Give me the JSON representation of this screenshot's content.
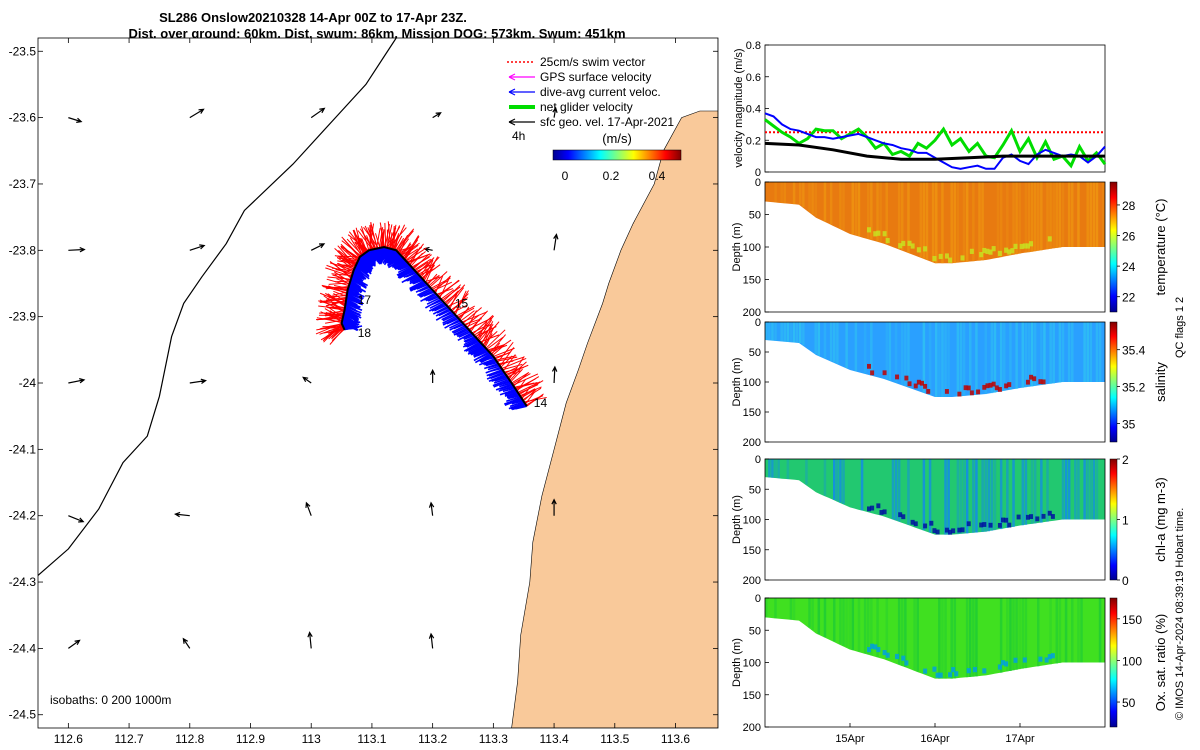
{
  "header": {
    "title_line1": "SL286 Onslow20210328 14-Apr 00Z to 17-Apr 23Z.",
    "title_line2": "Dist. over ground: 60km. Dist. swum: 86km. Mission DOG: 573km. Swum: 451km"
  },
  "colors": {
    "swim_vector": "#ff0000",
    "gps_velocity": "#ff00ff",
    "dive_current": "#0000ff",
    "net_glider": "#00dd00",
    "sfc_geo": "#000000",
    "land": "#f9c99a",
    "track": "#000000"
  },
  "map": {
    "lon_ticks": [
      "112.6",
      "112.7",
      "112.8",
      "112.9",
      "113",
      "113.1",
      "113.2",
      "113.3",
      "113.4",
      "113.5",
      "113.6"
    ],
    "lat_ticks": [
      "-23.5",
      "-23.6",
      "-23.7",
      "-23.8",
      "-23.9",
      "-24",
      "-24.1",
      "-24.2",
      "-24.3",
      "-24.4",
      "-24.5"
    ],
    "lon_range": [
      112.55,
      113.67
    ],
    "lat_range": [
      -24.52,
      -23.48
    ],
    "legend": [
      {
        "label": "25cm/s swim vector",
        "color": "#ff0000",
        "style": "dotted"
      },
      {
        "label": "GPS surface velocity",
        "color": "#ff00ff",
        "style": "arrow"
      },
      {
        "label": "dive-avg current veloc.",
        "color": "#0000ff",
        "style": "arrow"
      },
      {
        "label": "net glider velocity",
        "color": "#00dd00",
        "style": "thick"
      },
      {
        "label": "sfc geo. vel. 17-Apr-2021",
        "color": "#000000",
        "style": "arrow"
      }
    ],
    "legend_extra": "4h",
    "colorbar_title": "(m/s)",
    "colorbar_ticks": [
      "0",
      "0.2",
      "0.4"
    ],
    "day_labels": [
      {
        "text": "14",
        "lon": 113.36,
        "lat": -24.03
      },
      {
        "text": "15",
        "lon": 113.23,
        "lat": -23.88
      },
      {
        "text": "17",
        "lon": 113.07,
        "lat": -23.875
      },
      {
        "text": "18",
        "lon": 113.07,
        "lat": -23.925
      }
    ],
    "isobaths": "isobaths: 0   200  1000m",
    "geo_vectors": [
      {
        "lon": 112.6,
        "lat": -23.6,
        "u": 0.8,
        "v": -0.25
      },
      {
        "lon": 112.8,
        "lat": -23.6,
        "u": 1.0,
        "v": 0.6
      },
      {
        "lon": 113.0,
        "lat": -23.6,
        "u": 1.0,
        "v": 0.7
      },
      {
        "lon": 113.2,
        "lat": -23.6,
        "u": 0.5,
        "v": 0.3
      },
      {
        "lon": 113.4,
        "lat": -23.6,
        "u": 0.1,
        "v": 0.6
      },
      {
        "lon": 112.6,
        "lat": -23.8,
        "u": 1.0,
        "v": 0.05
      },
      {
        "lon": 112.8,
        "lat": -23.8,
        "u": 0.9,
        "v": 0.3
      },
      {
        "lon": 113.0,
        "lat": -23.8,
        "u": 0.8,
        "v": 0.4
      },
      {
        "lon": 113.2,
        "lat": -23.8,
        "u": -0.5,
        "v": 0.1
      },
      {
        "lon": 113.4,
        "lat": -23.8,
        "u": 0.15,
        "v": 1.0
      },
      {
        "lon": 112.6,
        "lat": -24.0,
        "u": 1.0,
        "v": 0.2
      },
      {
        "lon": 112.8,
        "lat": -24.0,
        "u": 1.0,
        "v": 0.15
      },
      {
        "lon": 113.0,
        "lat": -24.0,
        "u": -0.5,
        "v": 0.35
      },
      {
        "lon": 113.2,
        "lat": -24.0,
        "u": 0.0,
        "v": 0.8
      },
      {
        "lon": 113.4,
        "lat": -24.0,
        "u": 0.05,
        "v": 1.0
      },
      {
        "lon": 112.6,
        "lat": -24.2,
        "u": 1.0,
        "v": -0.4
      },
      {
        "lon": 112.8,
        "lat": -24.2,
        "u": -0.9,
        "v": 0.1
      },
      {
        "lon": 113.0,
        "lat": -24.2,
        "u": -0.3,
        "v": 0.8
      },
      {
        "lon": 113.2,
        "lat": -24.2,
        "u": -0.1,
        "v": 0.8
      },
      {
        "lon": 113.4,
        "lat": -24.2,
        "u": 0.0,
        "v": 1.1
      },
      {
        "lon": 112.6,
        "lat": -24.4,
        "u": 0.7,
        "v": 0.5
      },
      {
        "lon": 112.8,
        "lat": -24.4,
        "u": -0.4,
        "v": 0.6
      },
      {
        "lon": 113.0,
        "lat": -24.4,
        "u": -0.1,
        "v": 1.0
      },
      {
        "lon": 113.2,
        "lat": -24.4,
        "u": -0.1,
        "v": 0.9
      }
    ],
    "track": [
      [
        113.355,
        -24.035
      ],
      [
        113.33,
        -24.0
      ],
      [
        113.3,
        -23.96
      ],
      [
        113.27,
        -23.93
      ],
      [
        113.23,
        -23.89
      ],
      [
        113.19,
        -23.85
      ],
      [
        113.16,
        -23.82
      ],
      [
        113.14,
        -23.8
      ],
      [
        113.12,
        -23.795
      ],
      [
        113.095,
        -23.8
      ],
      [
        113.08,
        -23.81
      ],
      [
        113.07,
        -23.83
      ],
      [
        113.06,
        -23.86
      ],
      [
        113.055,
        -23.89
      ],
      [
        113.05,
        -23.91
      ],
      [
        113.055,
        -23.92
      ]
    ],
    "coast": [
      [
        113.67,
        -23.48
      ],
      [
        113.67,
        -23.59
      ],
      [
        113.64,
        -23.59
      ],
      [
        113.61,
        -23.6
      ],
      [
        113.58,
        -23.65
      ],
      [
        113.565,
        -23.7
      ],
      [
        113.53,
        -23.76
      ],
      [
        113.51,
        -23.8
      ],
      [
        113.49,
        -23.85
      ],
      [
        113.48,
        -23.88
      ],
      [
        113.455,
        -23.94
      ],
      [
        113.44,
        -23.98
      ],
      [
        113.42,
        -24.03
      ],
      [
        113.4,
        -24.1
      ],
      [
        113.38,
        -24.17
      ],
      [
        113.365,
        -24.24
      ],
      [
        113.36,
        -24.3
      ],
      [
        113.345,
        -24.38
      ],
      [
        113.34,
        -24.45
      ],
      [
        113.33,
        -24.52
      ],
      [
        113.67,
        -24.52
      ]
    ],
    "isobath_line": [
      [
        112.55,
        -24.29
      ],
      [
        112.6,
        -24.25
      ],
      [
        112.65,
        -24.19
      ],
      [
        112.69,
        -24.12
      ],
      [
        112.73,
        -24.08
      ],
      [
        112.75,
        -24.02
      ],
      [
        112.77,
        -23.93
      ],
      [
        112.79,
        -23.88
      ],
      [
        112.82,
        -23.84
      ],
      [
        112.86,
        -23.79
      ],
      [
        112.89,
        -23.74
      ],
      [
        112.97,
        -23.67
      ],
      [
        113.04,
        -23.6
      ],
      [
        113.09,
        -23.55
      ],
      [
        113.14,
        -23.48
      ]
    ]
  },
  "chart_data": [
    {
      "type": "line",
      "title": "velocity magnitude",
      "ylabel": "velocity magnitude (m/s)",
      "ylim": [
        0,
        0.8
      ],
      "yticks": [
        "0",
        "0.2",
        "0.4",
        "0.6",
        "0.8"
      ],
      "xlim": [
        14.0,
        18.0
      ],
      "series": [
        {
          "name": "swim vector 25cm/s",
          "color": "#ff0000",
          "style": "dotted",
          "x": [
            14.0,
            18.0
          ],
          "values": [
            0.25,
            0.25
          ]
        },
        {
          "name": "net glider velocity",
          "color": "#00dd00",
          "x": [
            14.0,
            14.1,
            14.2,
            14.3,
            14.4,
            14.5,
            14.6,
            14.7,
            14.8,
            14.9,
            15.0,
            15.1,
            15.2,
            15.3,
            15.4,
            15.5,
            15.6,
            15.7,
            15.8,
            15.9,
            16.0,
            16.1,
            16.2,
            16.3,
            16.4,
            16.5,
            16.6,
            16.7,
            16.8,
            16.9,
            17.0,
            17.1,
            17.2,
            17.3,
            17.4,
            17.5,
            17.6,
            17.7,
            17.8,
            17.9,
            18.0
          ],
          "values": [
            0.33,
            0.29,
            0.25,
            0.22,
            0.18,
            0.21,
            0.27,
            0.26,
            0.26,
            0.21,
            0.24,
            0.27,
            0.22,
            0.15,
            0.18,
            0.11,
            0.13,
            0.1,
            0.18,
            0.15,
            0.2,
            0.27,
            0.17,
            0.21,
            0.13,
            0.18,
            0.1,
            0.09,
            0.17,
            0.26,
            0.13,
            0.21,
            0.09,
            0.19,
            0.08,
            0.1,
            0.04,
            0.16,
            0.07,
            0.12,
            0.05
          ]
        },
        {
          "name": "dive-avg current veloc.",
          "color": "#0000ff",
          "x": [
            14.0,
            14.1,
            14.2,
            14.3,
            14.4,
            14.5,
            14.6,
            14.7,
            14.8,
            14.9,
            15.0,
            15.1,
            15.2,
            15.3,
            15.4,
            15.5,
            15.6,
            15.7,
            15.8,
            15.9,
            16.0,
            16.1,
            16.2,
            16.3,
            16.4,
            16.5,
            16.6,
            16.7,
            16.8,
            16.9,
            17.0,
            17.1,
            17.2,
            17.3,
            17.4,
            17.5,
            17.6,
            17.7,
            17.8,
            17.9,
            18.0
          ],
          "values": [
            0.37,
            0.35,
            0.3,
            0.27,
            0.26,
            0.24,
            0.22,
            0.22,
            0.21,
            0.22,
            0.23,
            0.24,
            0.22,
            0.2,
            0.18,
            0.17,
            0.15,
            0.14,
            0.12,
            0.12,
            0.09,
            0.06,
            0.03,
            0.02,
            0.03,
            0.04,
            0.02,
            0.02,
            0.09,
            0.11,
            0.07,
            0.05,
            0.11,
            0.14,
            0.12,
            0.1,
            0.11,
            0.1,
            0.06,
            0.1,
            0.16
          ]
        },
        {
          "name": "sfc geo. vel.",
          "color": "#000000",
          "x": [
            14.0,
            14.4,
            14.8,
            15.2,
            15.6,
            16.0,
            16.4,
            16.8,
            17.2,
            17.6,
            18.0
          ],
          "values": [
            0.18,
            0.17,
            0.14,
            0.1,
            0.08,
            0.08,
            0.09,
            0.1,
            0.1,
            0.1,
            0.1
          ]
        }
      ]
    },
    {
      "type": "heatmap",
      "variable": "temperature",
      "colorbar_label": "temperature (°C)",
      "colorbar_ticks": [
        "22",
        "24",
        "26",
        "28"
      ],
      "ylabel": "Depth (m)",
      "yticks": [
        "0",
        "50",
        "100",
        "150",
        "200"
      ],
      "ylim": [
        200,
        0
      ],
      "xlim": [
        14.0,
        18.0
      ],
      "bottom_depth": {
        "x": [
          14.0,
          14.4,
          14.6,
          15.0,
          15.4,
          15.8,
          16.0,
          16.2,
          16.6,
          17.0,
          17.5,
          18.0
        ],
        "depth": [
          30,
          35,
          55,
          80,
          95,
          115,
          125,
          125,
          120,
          110,
          100,
          100
        ]
      },
      "surface_value": 28.4,
      "deep_value": 27.0
    },
    {
      "type": "heatmap",
      "variable": "salinity",
      "colorbar_label": "salinity",
      "colorbar_ticks": [
        "35",
        "35.2",
        "35.4"
      ],
      "ylabel": "Depth (m)",
      "yticks": [
        "0",
        "50",
        "100",
        "150",
        "200"
      ],
      "ylim": [
        200,
        0
      ],
      "xlim": [
        14.0,
        18.0
      ],
      "surface_value": 35.1,
      "deep_value": 35.2
    },
    {
      "type": "heatmap",
      "variable": "chl-a",
      "colorbar_label": "chl-a (mg m-3)",
      "colorbar_ticks": [
        "0",
        "1",
        "2"
      ],
      "ylabel": "Depth (m)",
      "yticks": [
        "0",
        "50",
        "100",
        "150",
        "200"
      ],
      "ylim": [
        200,
        0
      ],
      "xlim": [
        14.0,
        18.0
      ],
      "surface_value": 0.8,
      "deep_value": 0.2
    },
    {
      "type": "heatmap",
      "variable": "Ox. sat. ratio",
      "colorbar_label": "Ox. sat. ratio (%)",
      "colorbar_ticks": [
        "50",
        "100",
        "150"
      ],
      "ylabel": "Depth (m)",
      "yticks": [
        "0",
        "50",
        "100",
        "150",
        "200"
      ],
      "ylim": [
        200,
        0
      ],
      "xlim": [
        14.0,
        18.0
      ],
      "surface_value": 108,
      "deep_value": 95
    }
  ],
  "time_axis": {
    "ticks": [
      {
        "label": "15Apr",
        "x": 15.0
      },
      {
        "label": "16Apr",
        "x": 16.0
      },
      {
        "label": "17Apr",
        "x": 17.0
      }
    ]
  },
  "footer": {
    "qc_text": "QC flags 1  2",
    "credit": "© IMOS 14-Apr-2024 08:39:19 Hobart time."
  }
}
